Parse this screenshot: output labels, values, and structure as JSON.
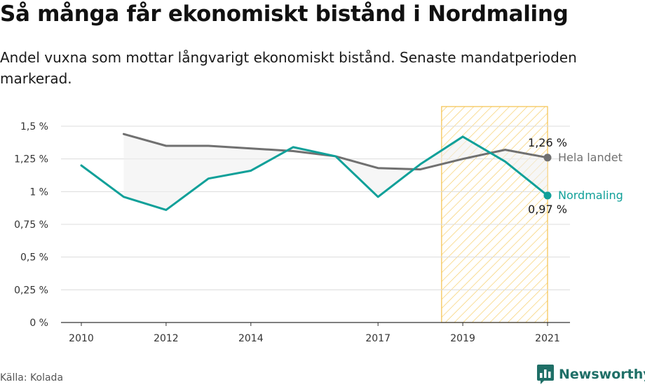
{
  "header": {
    "title": "Så många får ekonomiskt bistånd i Nordmaling",
    "subtitle": "Andel vuxna som mottar långvarigt ekonomiskt bistånd. Senaste mandatperioden markerad."
  },
  "footer": {
    "source": "Källa: Kolada",
    "brand": "Newsworthy"
  },
  "colors": {
    "nordmaling": "#10a099",
    "hela_landet": "#707070",
    "highlight_stroke": "#f5c24c",
    "grid": "#dcdcdc",
    "axis": "#333333"
  },
  "chart_data": {
    "type": "line",
    "title": "Så många får ekonomiskt bistånd i Nordmaling",
    "xlabel": "",
    "ylabel": "",
    "x_ticks": [
      2010,
      2012,
      2014,
      2017,
      2019,
      2021
    ],
    "y_ticks": [
      {
        "value": 0,
        "label": "0 %"
      },
      {
        "value": 0.25,
        "label": "0,25 %"
      },
      {
        "value": 0.5,
        "label": "0,5 %"
      },
      {
        "value": 0.75,
        "label": "0,75 %"
      },
      {
        "value": 1,
        "label": "1 %"
      },
      {
        "value": 1.25,
        "label": "1,25 %"
      },
      {
        "value": 1.5,
        "label": "1,5 %"
      }
    ],
    "xlim": [
      2010,
      2021
    ],
    "ylim": [
      0,
      1.5
    ],
    "grid": true,
    "highlight_period": {
      "from": 2018.5,
      "to": 2021
    },
    "series": [
      {
        "name": "Hela landet",
        "key": "hela_landet",
        "x": [
          2011,
          2012,
          2013,
          2014,
          2015,
          2016,
          2017,
          2018,
          2019,
          2020,
          2021
        ],
        "values": [
          1.44,
          1.35,
          1.35,
          1.33,
          1.31,
          1.27,
          1.18,
          1.17,
          1.25,
          1.32,
          1.26
        ],
        "end_label": "1,26 %"
      },
      {
        "name": "Nordmaling",
        "key": "nordmaling",
        "x": [
          2010,
          2011,
          2012,
          2013,
          2014,
          2015,
          2016,
          2017,
          2018,
          2019,
          2020,
          2021
        ],
        "values": [
          1.2,
          0.96,
          0.86,
          1.1,
          1.16,
          1.34,
          1.27,
          0.96,
          1.21,
          1.42,
          1.23,
          0.97
        ],
        "end_label": "0,97 %"
      }
    ]
  }
}
